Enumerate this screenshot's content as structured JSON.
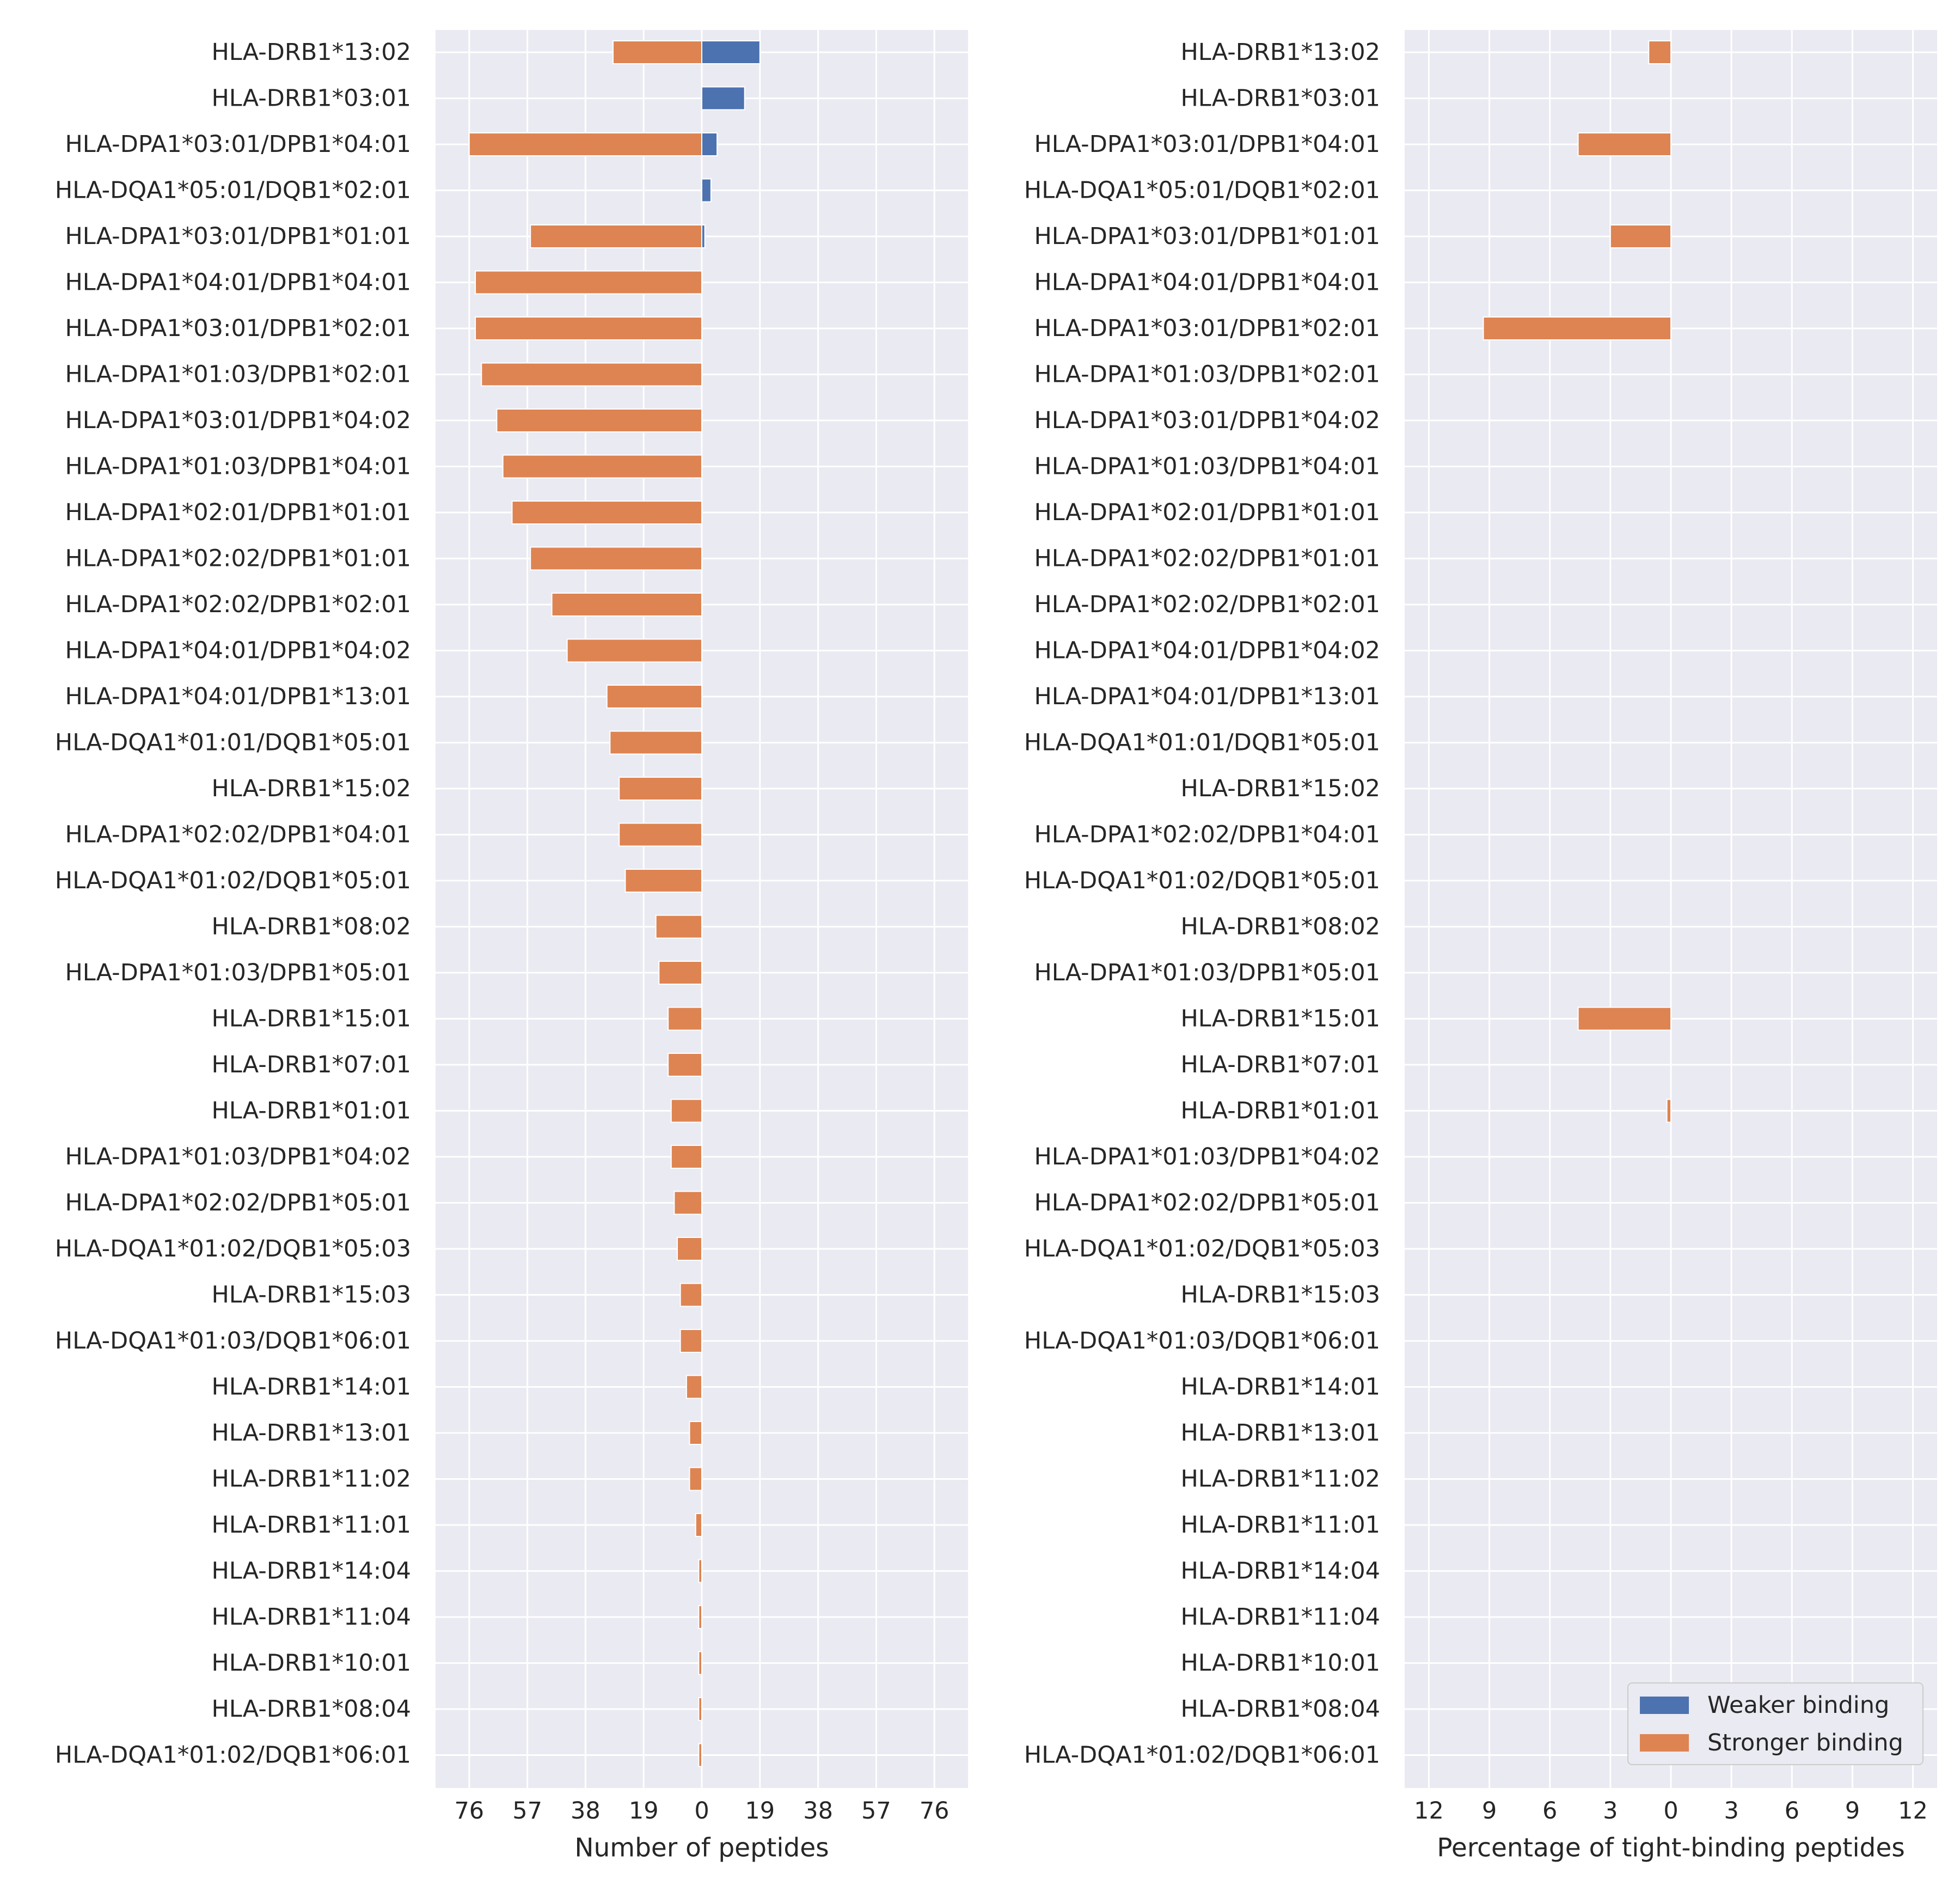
{
  "chart_data": [
    {
      "type": "bar",
      "orientation": "horizontal-diverging",
      "title": "",
      "xlabel": "Number of peptides",
      "ylabel": "",
      "xlim": [
        -87,
        87
      ],
      "xticks": [
        "76",
        "57",
        "38",
        "19",
        "0",
        "19",
        "38",
        "57",
        "76"
      ],
      "xtick_values": [
        -76,
        -57,
        -38,
        -19,
        0,
        19,
        38,
        57,
        76
      ],
      "grid": true,
      "categories": [
        "HLA-DRB1*13:02",
        "HLA-DRB1*03:01",
        "HLA-DPA1*03:01/DPB1*04:01",
        "HLA-DQA1*05:01/DQB1*02:01",
        "HLA-DPA1*03:01/DPB1*01:01",
        "HLA-DPA1*04:01/DPB1*04:01",
        "HLA-DPA1*03:01/DPB1*02:01",
        "HLA-DPA1*01:03/DPB1*02:01",
        "HLA-DPA1*03:01/DPB1*04:02",
        "HLA-DPA1*01:03/DPB1*04:01",
        "HLA-DPA1*02:01/DPB1*01:01",
        "HLA-DPA1*02:02/DPB1*01:01",
        "HLA-DPA1*02:02/DPB1*02:01",
        "HLA-DPA1*04:01/DPB1*04:02",
        "HLA-DPA1*04:01/DPB1*13:01",
        "HLA-DQA1*01:01/DQB1*05:01",
        "HLA-DRB1*15:02",
        "HLA-DPA1*02:02/DPB1*04:01",
        "HLA-DQA1*01:02/DQB1*05:01",
        "HLA-DRB1*08:02",
        "HLA-DPA1*01:03/DPB1*05:01",
        "HLA-DRB1*15:01",
        "HLA-DRB1*07:01",
        "HLA-DRB1*01:01",
        "HLA-DPA1*01:03/DPB1*04:02",
        "HLA-DPA1*02:02/DPB1*05:01",
        "HLA-DQA1*01:02/DQB1*05:03",
        "HLA-DRB1*15:03",
        "HLA-DQA1*01:03/DQB1*06:01",
        "HLA-DRB1*14:01",
        "HLA-DRB1*13:01",
        "HLA-DRB1*11:02",
        "HLA-DRB1*11:01",
        "HLA-DRB1*14:04",
        "HLA-DRB1*11:04",
        "HLA-DRB1*10:01",
        "HLA-DRB1*08:04",
        "HLA-DQA1*01:02/DQB1*06:01"
      ],
      "series": [
        {
          "name": "Weaker binding",
          "direction": "right",
          "values": [
            19,
            14,
            5,
            3,
            1,
            0,
            0,
            0,
            0,
            0,
            0,
            0,
            0,
            0,
            0,
            0,
            0,
            0,
            0,
            0,
            0,
            0,
            0,
            0,
            0,
            0,
            0,
            0,
            0,
            0,
            0,
            0,
            0,
            0,
            0,
            0,
            0,
            0
          ]
        },
        {
          "name": "Stronger binding",
          "direction": "left",
          "values": [
            29,
            0,
            76,
            0,
            56,
            74,
            74,
            72,
            67,
            65,
            62,
            56,
            49,
            44,
            31,
            30,
            27,
            27,
            25,
            15,
            14,
            11,
            11,
            10,
            10,
            9,
            8,
            7,
            7,
            5,
            4,
            4,
            2,
            1,
            1,
            1,
            1,
            1
          ]
        }
      ]
    },
    {
      "type": "bar",
      "orientation": "horizontal-diverging",
      "title": "",
      "xlabel": "Percentage of tight-binding peptides",
      "ylabel": "",
      "xlim": [
        -13.2,
        13.2
      ],
      "xticks": [
        "12",
        "9",
        "6",
        "3",
        "0",
        "3",
        "6",
        "9",
        "12"
      ],
      "xtick_values": [
        -12,
        -9,
        -6,
        -3,
        0,
        3,
        6,
        9,
        12
      ],
      "grid": true,
      "legend_position": "lower-right",
      "categories": [
        "HLA-DRB1*13:02",
        "HLA-DRB1*03:01",
        "HLA-DPA1*03:01/DPB1*04:01",
        "HLA-DQA1*05:01/DQB1*02:01",
        "HLA-DPA1*03:01/DPB1*01:01",
        "HLA-DPA1*04:01/DPB1*04:01",
        "HLA-DPA1*03:01/DPB1*02:01",
        "HLA-DPA1*01:03/DPB1*02:01",
        "HLA-DPA1*03:01/DPB1*04:02",
        "HLA-DPA1*01:03/DPB1*04:01",
        "HLA-DPA1*02:01/DPB1*01:01",
        "HLA-DPA1*02:02/DPB1*01:01",
        "HLA-DPA1*02:02/DPB1*02:01",
        "HLA-DPA1*04:01/DPB1*04:02",
        "HLA-DPA1*04:01/DPB1*13:01",
        "HLA-DQA1*01:01/DQB1*05:01",
        "HLA-DRB1*15:02",
        "HLA-DPA1*02:02/DPB1*04:01",
        "HLA-DQA1*01:02/DQB1*05:01",
        "HLA-DRB1*08:02",
        "HLA-DPA1*01:03/DPB1*05:01",
        "HLA-DRB1*15:01",
        "HLA-DRB1*07:01",
        "HLA-DRB1*01:01",
        "HLA-DPA1*01:03/DPB1*04:02",
        "HLA-DPA1*02:02/DPB1*05:01",
        "HLA-DQA1*01:02/DQB1*05:03",
        "HLA-DRB1*15:03",
        "HLA-DQA1*01:03/DQB1*06:01",
        "HLA-DRB1*14:01",
        "HLA-DRB1*13:01",
        "HLA-DRB1*11:02",
        "HLA-DRB1*11:01",
        "HLA-DRB1*14:04",
        "HLA-DRB1*11:04",
        "HLA-DRB1*10:01",
        "HLA-DRB1*08:04",
        "HLA-DQA1*01:02/DQB1*06:01"
      ],
      "series": [
        {
          "name": "Weaker binding",
          "direction": "right",
          "values": [
            0,
            0,
            0,
            0,
            0,
            0,
            0,
            0,
            0,
            0,
            0,
            0,
            0,
            0,
            0,
            0,
            0,
            0,
            0,
            0,
            0,
            0,
            0,
            0,
            0,
            0,
            0,
            0,
            0,
            0,
            0,
            0,
            0,
            0,
            0,
            0,
            0,
            0
          ]
        },
        {
          "name": "Stronger binding",
          "direction": "left",
          "values": [
            1.1,
            0,
            4.6,
            0,
            3.0,
            0,
            9.3,
            0,
            0,
            0,
            0,
            0,
            0,
            0,
            0,
            0,
            0,
            0,
            0,
            0,
            0,
            4.6,
            0,
            0.2,
            0,
            0,
            0,
            0,
            0,
            0,
            0,
            0,
            0,
            0,
            0,
            0,
            0,
            0
          ]
        }
      ]
    }
  ],
  "legend": {
    "items": [
      {
        "label": "Weaker binding",
        "color": "#4c72b0"
      },
      {
        "label": "Stronger binding",
        "color": "#dd8452"
      }
    ]
  },
  "colors": {
    "panel_bg": "#eaeaf2",
    "grid": "#ffffff",
    "weaker": "#4c72b0",
    "stronger": "#dd8452"
  }
}
